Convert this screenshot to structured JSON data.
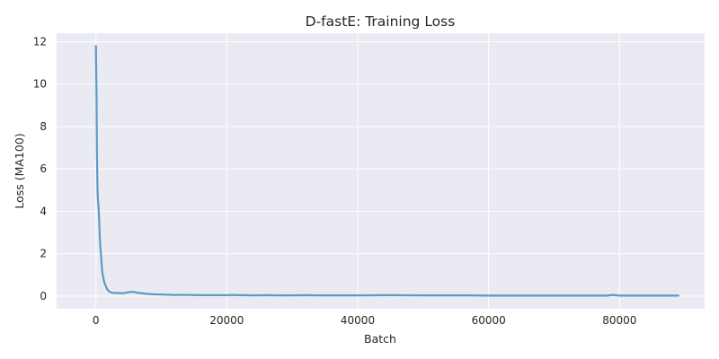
{
  "chart_data": {
    "type": "line",
    "title": "D-fastE: Training Loss",
    "xlabel": "Batch",
    "ylabel": "Loss (MA100)",
    "xlim": [
      -6000,
      93000
    ],
    "ylim": [
      -0.6,
      12.4
    ],
    "xticks": [
      0,
      20000,
      40000,
      60000,
      80000
    ],
    "yticks": [
      0,
      2,
      4,
      6,
      8,
      10,
      12
    ],
    "grid": true,
    "line_color": "#5b9ac8",
    "background_color": "#eaeaf2",
    "series": [
      {
        "x": [
          0,
          20,
          50,
          100,
          150,
          200,
          250,
          300,
          400,
          500,
          600,
          700,
          800,
          900,
          1000,
          1200,
          1400,
          1600,
          1800,
          2000,
          2300,
          2600,
          3000,
          3500,
          4000,
          4500,
          5000,
          5500,
          6000,
          6500,
          7000,
          8000,
          9000,
          10000,
          12000,
          14000,
          16000,
          18000,
          20000,
          21000,
          22000,
          24000,
          26000,
          28000,
          30000,
          32000,
          34000,
          36000,
          40000,
          45000,
          50000,
          55000,
          57000,
          60000,
          65000,
          70000,
          75000,
          78000,
          79000,
          80000,
          85000,
          89000
        ],
        "values": [
          11.8,
          11.5,
          10.5,
          9.5,
          7.0,
          5.8,
          4.9,
          4.6,
          4.2,
          3.6,
          2.7,
          2.2,
          1.9,
          1.4,
          1.1,
          0.75,
          0.55,
          0.4,
          0.28,
          0.22,
          0.17,
          0.15,
          0.14,
          0.14,
          0.13,
          0.15,
          0.18,
          0.2,
          0.18,
          0.15,
          0.13,
          0.1,
          0.08,
          0.07,
          0.05,
          0.05,
          0.04,
          0.04,
          0.04,
          0.05,
          0.04,
          0.03,
          0.04,
          0.03,
          0.03,
          0.04,
          0.03,
          0.03,
          0.03,
          0.04,
          0.03,
          0.03,
          0.03,
          0.02,
          0.02,
          0.02,
          0.02,
          0.02,
          0.05,
          0.02,
          0.02,
          0.02
        ]
      }
    ]
  }
}
